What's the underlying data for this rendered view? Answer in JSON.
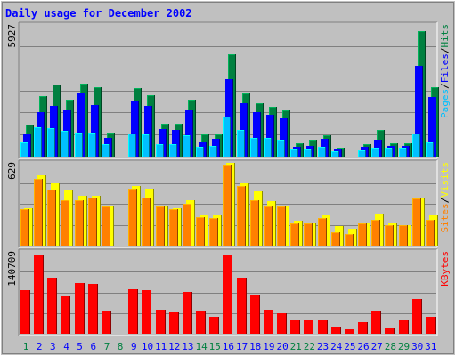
{
  "chart_data": {
    "type": "bar",
    "title": "Daily usage for December 2002",
    "categories": [
      "1",
      "2",
      "3",
      "4",
      "5",
      "6",
      "7",
      "8",
      "9",
      "10",
      "11",
      "12",
      "13",
      "14",
      "15",
      "16",
      "17",
      "18",
      "19",
      "20",
      "21",
      "22",
      "23",
      "24",
      "25",
      "26",
      "27",
      "28",
      "29",
      "30",
      "31"
    ],
    "weekend_days": [
      "1",
      "7",
      "8",
      "14",
      "15",
      "21",
      "22",
      "28",
      "29"
    ],
    "panels": [
      {
        "max_label": "5927",
        "ylim": [
          0,
          5927
        ],
        "legend": [
          "Pages",
          "/",
          "Files",
          "/",
          "Hits"
        ],
        "series": [
          {
            "name": "Hits",
            "color": "#008040",
            "values": [
              1450,
              2750,
              3250,
              2600,
              3300,
              3150,
              1100,
              0,
              3100,
              2800,
              1500,
              1500,
              2600,
              1000,
              1000,
              4650,
              2850,
              2400,
              2250,
              2100,
              600,
              750,
              950,
              400,
              0,
              550,
              1200,
              600,
              600,
              5700,
              3150
            ]
          },
          {
            "name": "Files",
            "color": "#0000ff",
            "values": [
              1050,
              2000,
              2300,
              2100,
              2850,
              2350,
              850,
              0,
              2500,
              2300,
              1250,
              1200,
              2100,
              650,
              800,
              3500,
              2400,
              2000,
              1900,
              1750,
              450,
              500,
              800,
              350,
              0,
              450,
              750,
              500,
              500,
              4100,
              2700
            ]
          },
          {
            "name": "Pages",
            "color": "#00c0ff",
            "values": [
              650,
              1350,
              1300,
              1150,
              1100,
              1100,
              550,
              0,
              1050,
              1000,
              550,
              550,
              950,
              450,
              500,
              1800,
              1200,
              850,
              850,
              750,
              350,
              350,
              450,
              250,
              0,
              300,
              400,
              400,
              400,
              1050,
              650
            ]
          }
        ]
      },
      {
        "max_label": "629",
        "ylim": [
          0,
          629
        ],
        "legend": [
          "Sites",
          "/",
          "Visits"
        ],
        "series": [
          {
            "name": "Visits",
            "color": "#ffff00",
            "values": [
              290,
              540,
              480,
              430,
              380,
              380,
              300,
              0,
              460,
              440,
              310,
              290,
              350,
              230,
              230,
              635,
              480,
              420,
              340,
              310,
              190,
              180,
              230,
              150,
              130,
              180,
              240,
              170,
              160,
              370,
              230
            ]
          },
          {
            "name": "Sites",
            "color": "#ff8000",
            "values": [
              280,
              510,
              430,
              350,
              350,
              370,
              300,
              0,
              440,
              370,
              300,
              280,
              320,
              220,
              210,
              620,
              460,
              350,
              300,
              300,
              170,
              170,
              210,
              100,
              90,
              170,
              200,
              160,
              160,
              360,
              200
            ]
          }
        ]
      },
      {
        "max_label": "140709",
        "ylim": [
          0,
          140709
        ],
        "legend": [
          "KBytes"
        ],
        "series": [
          {
            "name": "KBytes",
            "color": "#ff0000",
            "values": [
              75000,
              138000,
              97000,
              65000,
              88000,
              86000,
              40000,
              0,
              77000,
              75000,
              42000,
              37000,
              72000,
              40000,
              30000,
              136000,
              97000,
              67000,
              42000,
              35000,
              24000,
              25000,
              25000,
              12000,
              8000,
              20000,
              40000,
              10000,
              24000,
              60000,
              30000
            ]
          }
        ]
      }
    ],
    "colors": {
      "background": "#c0c0c0",
      "title": "#0000ff",
      "weekday_label": "#0000ff",
      "weekend_label": "#008040",
      "gridline": "#808080",
      "slash": "#000000"
    }
  }
}
